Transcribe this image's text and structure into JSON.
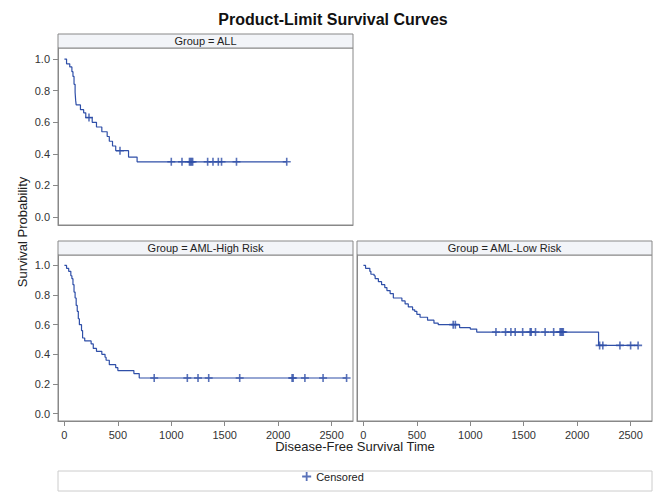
{
  "chart_data": {
    "type": "line",
    "title": "Product-Limit Survival Curves",
    "x_label": "Disease-Free Survival Time",
    "y_label": "Survival Probability",
    "xlim": [
      -60,
      2700
    ],
    "xticks": [
      0,
      500,
      1000,
      1500,
      2000,
      2500
    ],
    "ylim": [
      -0.05,
      1.07
    ],
    "yticks": [
      {
        "value": 0,
        "label": "0.0"
      },
      {
        "value": 0.2,
        "label": "0.2"
      },
      {
        "value": 0.4,
        "label": "0.4"
      },
      {
        "value": 0.6,
        "label": "0.6"
      },
      {
        "value": 0.8,
        "label": "0.8"
      },
      {
        "value": 1,
        "label": "1.0"
      }
    ],
    "grid": false,
    "legend": "bottom",
    "censor_label": "Censored",
    "censor_marker": "plus",
    "line_style": "step",
    "series": [
      {
        "name": "Group = ALL",
        "color": "#2F4FA8",
        "x": [
          0,
          20,
          50,
          70,
          80,
          90,
          100,
          105,
          110,
          150,
          180,
          200,
          260,
          300,
          350,
          400,
          420,
          450,
          480,
          600,
          680,
          2080
        ],
        "values": [
          1,
          0.97,
          0.95,
          0.92,
          0.89,
          0.84,
          0.79,
          0.74,
          0.71,
          0.68,
          0.66,
          0.63,
          0.6,
          0.57,
          0.54,
          0.51,
          0.48,
          0.45,
          0.42,
          0.38,
          0.35,
          0.35
        ],
        "censored_x": [
          230,
          520,
          1000,
          1100,
          1170,
          1180,
          1190,
          1200,
          1340,
          1390,
          1440,
          1470,
          1610,
          2080
        ],
        "censored_values": [
          0.63,
          0.42,
          0.35,
          0.35,
          0.35,
          0.35,
          0.35,
          0.35,
          0.35,
          0.35,
          0.35,
          0.35,
          0.35,
          0.35
        ]
      },
      {
        "name": "Group = AML-High Risk",
        "color": "#2F4FA8",
        "x": [
          0,
          20,
          40,
          60,
          70,
          80,
          90,
          100,
          110,
          120,
          130,
          140,
          160,
          170,
          190,
          250,
          270,
          300,
          350,
          380,
          390,
          420,
          480,
          500,
          650,
          700,
          2640
        ],
        "values": [
          1,
          0.98,
          0.96,
          0.93,
          0.91,
          0.87,
          0.82,
          0.78,
          0.73,
          0.69,
          0.64,
          0.6,
          0.56,
          0.51,
          0.49,
          0.47,
          0.44,
          0.42,
          0.4,
          0.38,
          0.36,
          0.33,
          0.31,
          0.29,
          0.27,
          0.24,
          0.24
        ],
        "censored_x": [
          840,
          1150,
          1250,
          1350,
          1640,
          2130,
          2140,
          2250,
          2420,
          2640
        ],
        "censored_values": [
          0.24,
          0.24,
          0.24,
          0.24,
          0.24,
          0.24,
          0.24,
          0.24,
          0.24,
          0.24
        ]
      },
      {
        "name": "Group = AML-Low Risk",
        "color": "#2F4FA8",
        "x": [
          0,
          20,
          60,
          70,
          100,
          110,
          140,
          170,
          200,
          220,
          250,
          280,
          360,
          390,
          420,
          460,
          480,
          500,
          530,
          600,
          660,
          700,
          900,
          1000,
          1060,
          2200,
          2570
        ],
        "values": [
          1,
          0.98,
          0.96,
          0.94,
          0.93,
          0.91,
          0.89,
          0.87,
          0.85,
          0.83,
          0.81,
          0.78,
          0.76,
          0.74,
          0.72,
          0.7,
          0.69,
          0.67,
          0.65,
          0.63,
          0.61,
          0.6,
          0.58,
          0.57,
          0.55,
          0.46,
          0.46
        ],
        "censored_x": [
          840,
          860,
          1240,
          1330,
          1380,
          1420,
          1490,
          1560,
          1570,
          1610,
          1700,
          1780,
          1840,
          1850,
          1860,
          1870,
          2210,
          2240,
          2400,
          2500,
          2570
        ],
        "censored_values": [
          0.6,
          0.6,
          0.55,
          0.55,
          0.55,
          0.55,
          0.55,
          0.55,
          0.55,
          0.55,
          0.55,
          0.55,
          0.55,
          0.55,
          0.55,
          0.55,
          0.46,
          0.46,
          0.46,
          0.46,
          0.46
        ]
      }
    ]
  }
}
